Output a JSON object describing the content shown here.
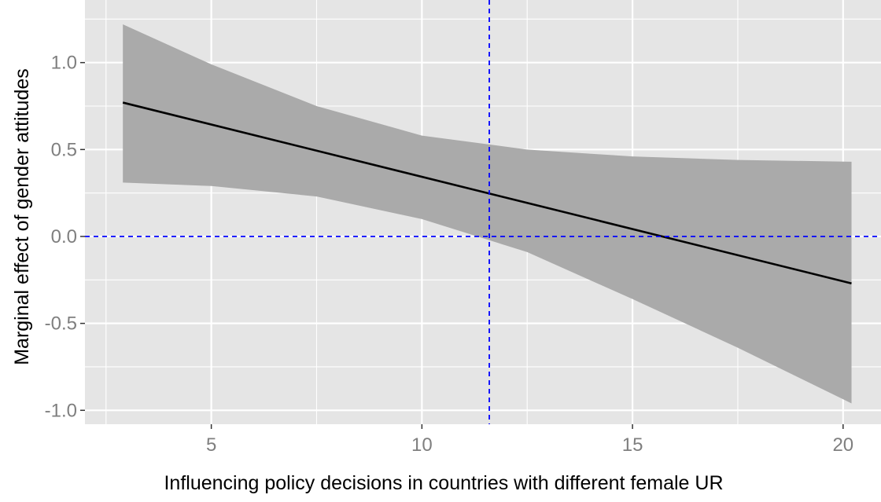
{
  "chart_data": {
    "type": "line",
    "title": "",
    "xlabel": "Influencing policy decisions in countries with different female UR",
    "ylabel": "Marginal effect of gender attitudes",
    "xlim": [
      2.0,
      20.9
    ],
    "ylim": [
      -1.08,
      1.36
    ],
    "x_ticks": [
      5,
      10,
      15,
      20
    ],
    "x_tick_labels": [
      "5",
      "10",
      "15",
      "20"
    ],
    "y_ticks": [
      -1.0,
      -0.5,
      0.0,
      0.5,
      1.0
    ],
    "y_tick_labels": [
      "-1.0",
      "-0.5",
      "0.0",
      "0.5",
      "1.0"
    ],
    "grid": true,
    "series": [
      {
        "type": "line",
        "x": [
          2.9,
          20.2
        ],
        "y": [
          0.77,
          -0.27
        ],
        "color": "#000000"
      }
    ],
    "ribbon": {
      "x": [
        2.9,
        5,
        7.5,
        10,
        12.5,
        15,
        17.5,
        20.2
      ],
      "lower": [
        0.31,
        0.29,
        0.23,
        0.1,
        -0.09,
        -0.36,
        -0.64,
        -0.96
      ],
      "upper": [
        1.22,
        0.99,
        0.75,
        0.58,
        0.5,
        0.46,
        0.44,
        0.43
      ],
      "color": "#aaaaaa"
    },
    "reference_lines": [
      {
        "orientation": "vertical",
        "value": 11.6,
        "color": "#0000ff",
        "style": "dashed"
      },
      {
        "orientation": "horizontal",
        "value": 0.0,
        "color": "#0000ff",
        "style": "dashed"
      }
    ],
    "panel_background": "#e5e5e5",
    "grid_color": "#ffffff"
  }
}
